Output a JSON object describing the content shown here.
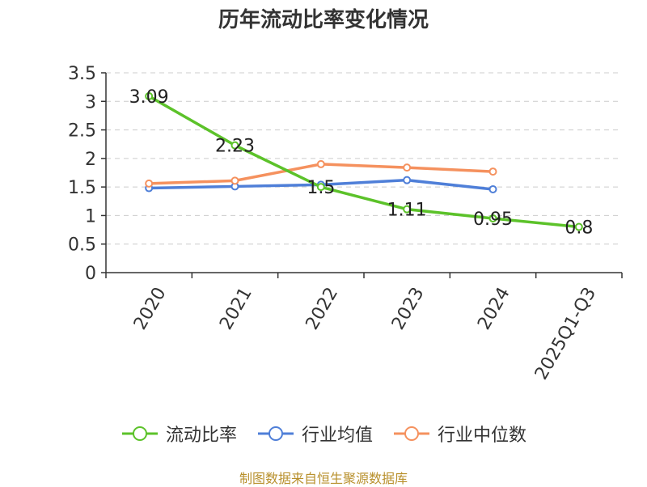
{
  "chart_data": {
    "type": "line",
    "title": "历年流动比率变化情况",
    "categories": [
      "2020",
      "2021",
      "2022",
      "2023",
      "2024",
      "2025Q1-Q3"
    ],
    "ylim": [
      0,
      3.5
    ],
    "yticks": [
      "0",
      "0.5",
      "1",
      "1.5",
      "2",
      "2.5",
      "3",
      "3.5"
    ],
    "grid": true,
    "legend_position": "bottom",
    "series": [
      {
        "name": "流动比率",
        "color": "#5cc22a",
        "values": [
          3.09,
          2.23,
          1.5,
          1.11,
          0.95,
          0.8
        ],
        "labels": [
          "3.09",
          "2.23",
          "1.5",
          "1.11",
          "0.95",
          "0.8"
        ]
      },
      {
        "name": "行业均值",
        "color": "#4f7fd8",
        "values": [
          1.48,
          1.51,
          1.54,
          1.62,
          1.46,
          null
        ]
      },
      {
        "name": "行业中位数",
        "color": "#f5915e",
        "values": [
          1.56,
          1.61,
          1.9,
          1.84,
          1.77,
          null
        ]
      }
    ]
  },
  "source_note": "制图数据来自恒生聚源数据库"
}
